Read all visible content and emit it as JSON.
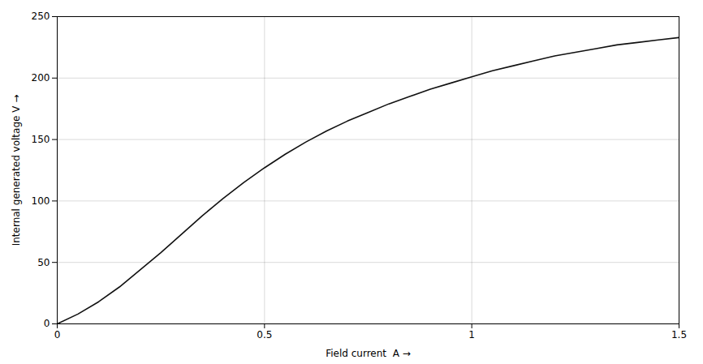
{
  "chart_data": {
    "type": "line",
    "xlabel": "Field current  A",
    "ylabel": "Internal generated voltage V",
    "x": [
      0,
      0.05,
      0.1,
      0.15,
      0.2,
      0.25,
      0.3,
      0.35,
      0.4,
      0.45,
      0.5,
      0.55,
      0.6,
      0.65,
      0.7,
      0.75,
      0.8,
      0.85,
      0.9,
      0.95,
      1.0,
      1.05,
      1.1,
      1.15,
      1.2,
      1.25,
      1.3,
      1.35,
      1.4,
      1.45,
      1.5
    ],
    "values": [
      0,
      8,
      18,
      30,
      44,
      58,
      73,
      88,
      102,
      115,
      127,
      138,
      148,
      157,
      165,
      172,
      179,
      185,
      191,
      196,
      201,
      206,
      210,
      214,
      218,
      221,
      224,
      227,
      229,
      231,
      233
    ],
    "color": "#111111",
    "xlim": [
      0,
      1.5
    ],
    "ylim": [
      0,
      250
    ],
    "xticks": [
      0,
      0.5,
      1.0,
      1.5
    ],
    "yticks": [
      0,
      50,
      100,
      150,
      200,
      250
    ],
    "grid": true
  }
}
